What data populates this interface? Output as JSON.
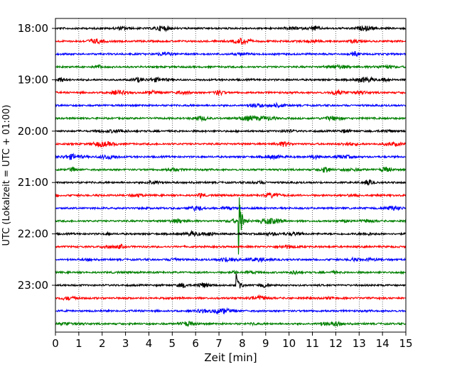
{
  "chart_data": {
    "type": "line",
    "title": "",
    "xlabel": "Zeit  [min]",
    "ylabel": "UTC (Lokalzeit = UTC + 01:00)",
    "xlim": [
      0,
      15
    ],
    "x_ticks": [
      "0",
      "1",
      "2",
      "3",
      "4",
      "5",
      "6",
      "7",
      "8",
      "9",
      "10",
      "11",
      "12",
      "13",
      "14",
      "15"
    ],
    "y_ticks": [
      "18:00",
      "19:00",
      "20:00",
      "21:00",
      "22:00",
      "23:00"
    ],
    "vertical_grid": "dotted, every 1 min",
    "trace_interval_min": 15,
    "trace_colors": [
      "#000000",
      "#ff0000",
      "#0000ff",
      "#008000"
    ],
    "traces": [
      {
        "start": "18:00",
        "color": "#000000"
      },
      {
        "start": "18:15",
        "color": "#ff0000"
      },
      {
        "start": "18:30",
        "color": "#0000ff"
      },
      {
        "start": "18:45",
        "color": "#008000"
      },
      {
        "start": "19:00",
        "color": "#000000"
      },
      {
        "start": "19:15",
        "color": "#ff0000"
      },
      {
        "start": "19:30",
        "color": "#0000ff"
      },
      {
        "start": "19:45",
        "color": "#008000"
      },
      {
        "start": "20:00",
        "color": "#000000"
      },
      {
        "start": "20:15",
        "color": "#ff0000"
      },
      {
        "start": "20:30",
        "color": "#0000ff"
      },
      {
        "start": "20:45",
        "color": "#008000"
      },
      {
        "start": "21:00",
        "color": "#000000"
      },
      {
        "start": "21:15",
        "color": "#ff0000"
      },
      {
        "start": "21:30",
        "color": "#0000ff"
      },
      {
        "start": "21:45",
        "color": "#008000"
      },
      {
        "start": "22:00",
        "color": "#000000"
      },
      {
        "start": "22:15",
        "color": "#ff0000"
      },
      {
        "start": "22:30",
        "color": "#0000ff"
      },
      {
        "start": "22:45",
        "color": "#008000"
      },
      {
        "start": "23:00",
        "color": "#000000"
      },
      {
        "start": "23:15",
        "color": "#ff0000"
      },
      {
        "start": "23:30",
        "color": "#0000ff"
      },
      {
        "start": "23:45",
        "color": "#008000"
      }
    ],
    "events": [
      {
        "trace": "21:45",
        "minute": 7.85,
        "note": "strong spike extending across 21:15–22:00 traces"
      },
      {
        "trace": "23:00",
        "minute": 7.75,
        "note": "spike"
      },
      {
        "trace": "22:45",
        "minute": 7.6,
        "note": "small spike"
      }
    ]
  }
}
